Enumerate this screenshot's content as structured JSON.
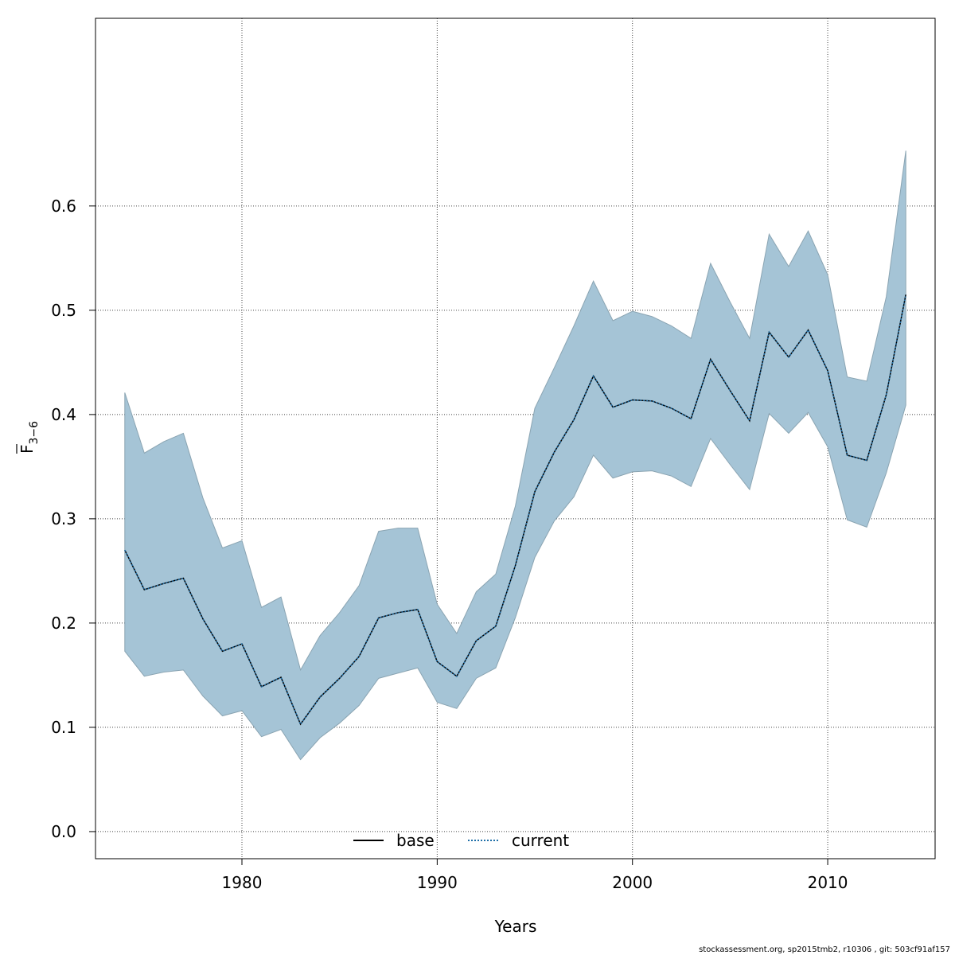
{
  "chart_data": {
    "type": "area",
    "xlabel": "Years",
    "ylabel_main": "F",
    "ylabel_sub": "3−6",
    "xlim": [
      1972.5,
      2015.5
    ],
    "ylim": [
      -0.026,
      0.78
    ],
    "x_ticks": [
      1980,
      1990,
      2000,
      2010
    ],
    "y_ticks": [
      0.0,
      0.1,
      0.2,
      0.3,
      0.4,
      0.5,
      0.6
    ],
    "y_tick_labels": [
      "0.0",
      "0.1",
      "0.2",
      "0.3",
      "0.4",
      "0.5",
      "0.6"
    ],
    "grid": true,
    "colors": {
      "band_fill": "#a5c4d6",
      "band_edge": "#8aa4b2",
      "base_line": "#000000",
      "current_line": "#1f6fa8",
      "grid": "#444444"
    },
    "legend": {
      "position": "bottom",
      "entries": [
        {
          "label": "base",
          "style": "solid"
        },
        {
          "label": "current",
          "style": "dotted"
        }
      ]
    },
    "x": [
      1974,
      1975,
      1976,
      1977,
      1978,
      1979,
      1980,
      1981,
      1982,
      1983,
      1984,
      1985,
      1986,
      1987,
      1988,
      1989,
      1990,
      1991,
      1992,
      1993,
      1994,
      1995,
      1996,
      1997,
      1998,
      1999,
      2000,
      2001,
      2002,
      2003,
      2004,
      2005,
      2006,
      2007,
      2008,
      2009,
      2010,
      2011,
      2012,
      2013,
      2014
    ],
    "series": [
      {
        "name": "base",
        "values": [
          0.27,
          0.232,
          0.238,
          0.243,
          0.204,
          0.173,
          0.18,
          0.139,
          0.148,
          0.103,
          0.129,
          0.147,
          0.168,
          0.205,
          0.21,
          0.213,
          0.163,
          0.149,
          0.183,
          0.197,
          0.255,
          0.326,
          0.364,
          0.395,
          0.437,
          0.407,
          0.414,
          0.413,
          0.406,
          0.396,
          0.453,
          0.423,
          0.394,
          0.479,
          0.455,
          0.481,
          0.442,
          0.361,
          0.356,
          0.419,
          0.515
        ]
      },
      {
        "name": "current",
        "values": [
          0.27,
          0.232,
          0.238,
          0.243,
          0.204,
          0.173,
          0.18,
          0.139,
          0.148,
          0.103,
          0.129,
          0.147,
          0.168,
          0.205,
          0.21,
          0.213,
          0.163,
          0.149,
          0.183,
          0.197,
          0.255,
          0.326,
          0.364,
          0.395,
          0.437,
          0.407,
          0.414,
          0.413,
          0.406,
          0.396,
          0.453,
          0.423,
          0.394,
          0.479,
          0.455,
          0.481,
          0.442,
          0.361,
          0.356,
          0.419,
          0.515
        ]
      }
    ],
    "band": {
      "upper": [
        0.421,
        0.363,
        0.374,
        0.382,
        0.32,
        0.272,
        0.279,
        0.215,
        0.225,
        0.155,
        0.188,
        0.21,
        0.236,
        0.288,
        0.291,
        0.291,
        0.218,
        0.19,
        0.23,
        0.247,
        0.312,
        0.406,
        0.445,
        0.485,
        0.528,
        0.49,
        0.499,
        0.494,
        0.485,
        0.473,
        0.545,
        0.508,
        0.473,
        0.573,
        0.542,
        0.576,
        0.534,
        0.436,
        0.432,
        0.513,
        0.653
      ],
      "lower": [
        0.173,
        0.149,
        0.153,
        0.155,
        0.13,
        0.111,
        0.116,
        0.091,
        0.098,
        0.069,
        0.09,
        0.104,
        0.121,
        0.147,
        0.152,
        0.157,
        0.124,
        0.118,
        0.147,
        0.157,
        0.205,
        0.263,
        0.298,
        0.321,
        0.361,
        0.339,
        0.345,
        0.346,
        0.341,
        0.331,
        0.377,
        0.352,
        0.328,
        0.401,
        0.382,
        0.402,
        0.369,
        0.299,
        0.292,
        0.344,
        0.409
      ]
    }
  },
  "footer": "stockassessment.org, sp2015tmb2, r10306 , git: 503cf91af157"
}
